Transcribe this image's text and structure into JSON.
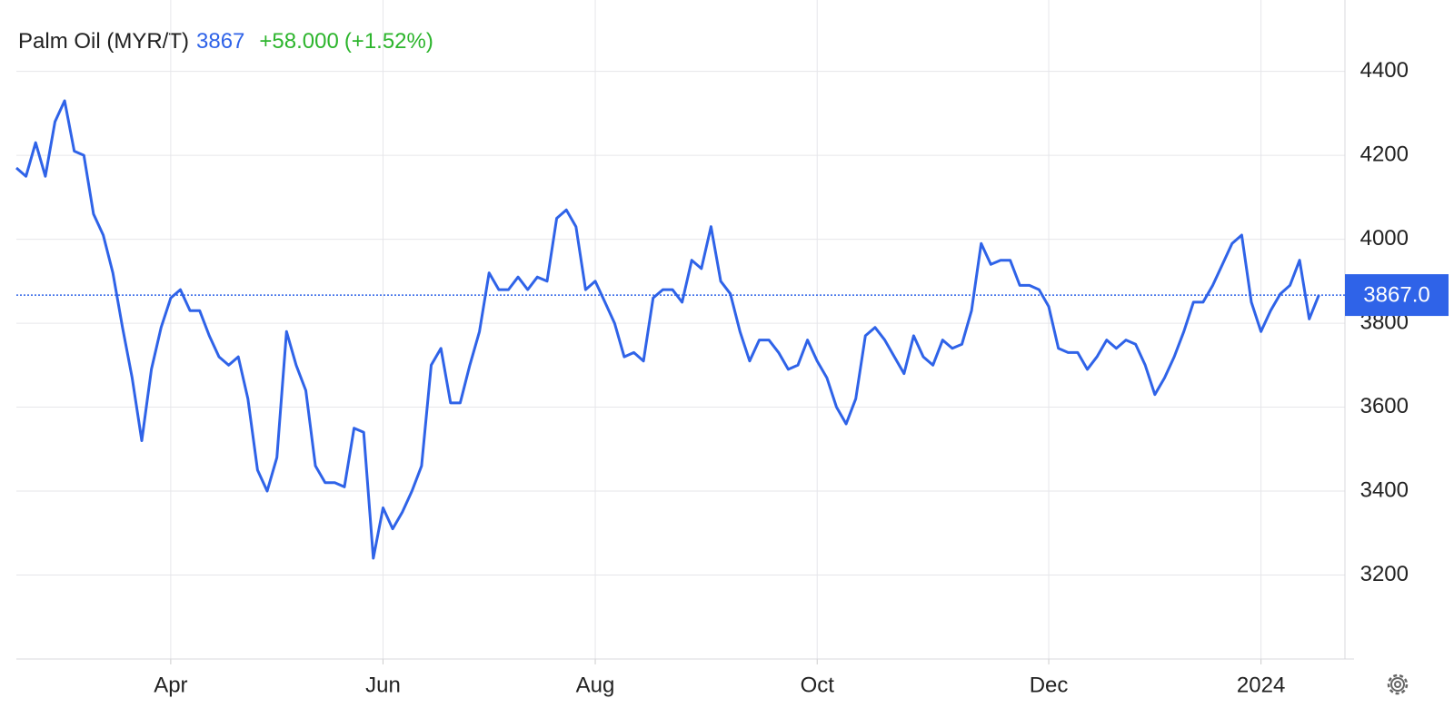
{
  "chart_data": {
    "type": "line",
    "title": "Palm Oil (MYR/T)",
    "price": 3867,
    "change": "+58.000",
    "change_pct": "(+1.52%)",
    "price_marker": {
      "value": 3867,
      "label": "3867.0"
    },
    "categories": [
      null,
      null,
      null,
      null,
      null,
      null,
      null,
      null,
      null,
      null,
      null,
      null,
      null,
      null,
      null,
      null,
      "Apr",
      null,
      null,
      null,
      null,
      null,
      null,
      null,
      null,
      null,
      null,
      null,
      null,
      null,
      null,
      null,
      null,
      null,
      null,
      null,
      null,
      null,
      "Jun",
      null,
      null,
      null,
      null,
      null,
      null,
      null,
      null,
      null,
      null,
      null,
      null,
      null,
      null,
      null,
      null,
      null,
      null,
      null,
      null,
      null,
      "Aug",
      null,
      null,
      null,
      null,
      null,
      null,
      null,
      null,
      null,
      null,
      null,
      null,
      null,
      null,
      null,
      null,
      null,
      null,
      null,
      null,
      null,
      null,
      "Oct",
      null,
      null,
      null,
      null,
      null,
      null,
      null,
      null,
      null,
      null,
      null,
      null,
      null,
      null,
      null,
      null,
      null,
      null,
      null,
      null,
      null,
      null,
      null,
      "Dec",
      null,
      null,
      null,
      null,
      null,
      null,
      null,
      null,
      null,
      null,
      null,
      null,
      null,
      null,
      null,
      null,
      null,
      null,
      null,
      null,
      null,
      "2024",
      null,
      null,
      null,
      null,
      null,
      null
    ],
    "series": [
      {
        "name": "Palm Oil",
        "color": "#2f63e8",
        "values": [
          4170,
          4150,
          4230,
          4150,
          4280,
          4330,
          4210,
          4200,
          4060,
          4010,
          3920,
          3790,
          3670,
          3520,
          3690,
          3790,
          3860,
          3880,
          3830,
          3830,
          3770,
          3720,
          3700,
          3720,
          3620,
          3450,
          3400,
          3480,
          3780,
          3700,
          3640,
          3460,
          3420,
          3420,
          3410,
          3550,
          3540,
          3240,
          3360,
          3310,
          3350,
          3400,
          3460,
          3700,
          3740,
          3610,
          3610,
          3700,
          3780,
          3920,
          3880,
          3880,
          3910,
          3880,
          3910,
          3900,
          4050,
          4070,
          4030,
          3880,
          3900,
          3850,
          3800,
          3720,
          3730,
          3710,
          3860,
          3880,
          3880,
          3850,
          3950,
          3930,
          4030,
          3900,
          3870,
          3780,
          3710,
          3760,
          3760,
          3730,
          3690,
          3700,
          3760,
          3710,
          3670,
          3600,
          3560,
          3620,
          3770,
          3790,
          3760,
          3720,
          3680,
          3770,
          3720,
          3700,
          3760,
          3740,
          3750,
          3830,
          3990,
          3940,
          3950,
          3950,
          3890,
          3890,
          3880,
          3840,
          3740,
          3730,
          3730,
          3690,
          3720,
          3760,
          3740,
          3760,
          3750,
          3700,
          3630,
          3670,
          3720,
          3780,
          3850,
          3850,
          3890,
          3940,
          3990,
          4010,
          3850,
          3780,
          3830,
          3870,
          3890,
          3950,
          3810,
          3867
        ]
      }
    ],
    "ylim": [
      3000,
      4570
    ],
    "yticks": [
      3200,
      3400,
      3600,
      3800,
      4000,
      4200,
      4400
    ],
    "grid": true
  }
}
